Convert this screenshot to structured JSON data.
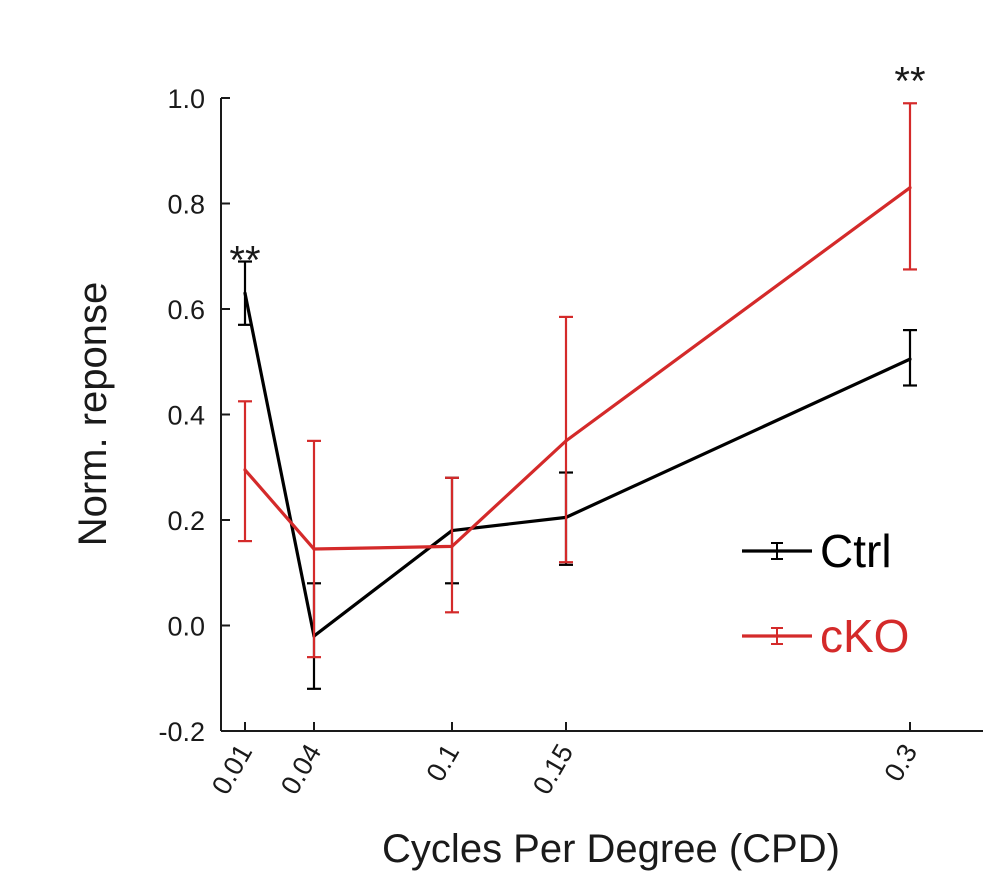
{
  "chart_data": {
    "type": "line",
    "xlabel": "Cycles Per Degree (CPD)",
    "ylabel": "Norm. reponse",
    "x": [
      0.01,
      0.04,
      0.1,
      0.15,
      0.3
    ],
    "x_tick_labels": [
      "0.01",
      "0.04",
      "0.1",
      "0.15",
      "0.3"
    ],
    "ylim": [
      -0.2,
      1.0
    ],
    "y_ticks": [
      -0.2,
      0.0,
      0.2,
      0.4,
      0.6,
      0.8,
      1.0
    ],
    "y_tick_labels": [
      "-0.2",
      "0.0",
      "0.2",
      "0.4",
      "0.6",
      "0.8",
      "1.0"
    ],
    "grid": false,
    "legend_position": "right",
    "series": [
      {
        "name": "Ctrl",
        "color": "#000000",
        "values": [
          0.63,
          -0.02,
          0.18,
          0.205,
          0.505
        ],
        "err_lower": [
          0.57,
          -0.12,
          0.08,
          0.115,
          0.455
        ],
        "err_upper": [
          0.69,
          0.08,
          0.28,
          0.29,
          0.56
        ]
      },
      {
        "name": "cKO",
        "color": "#d42a2a",
        "values": [
          0.295,
          0.145,
          0.15,
          0.35,
          0.83
        ],
        "err_lower": [
          0.16,
          -0.06,
          0.025,
          0.12,
          0.675
        ],
        "err_upper": [
          0.425,
          0.35,
          0.28,
          0.585,
          0.99
        ]
      }
    ],
    "annotations": [
      {
        "text": "**",
        "x": 0.01,
        "y": 0.72
      },
      {
        "text": "**",
        "x": 0.3,
        "y": 1.06
      }
    ]
  }
}
